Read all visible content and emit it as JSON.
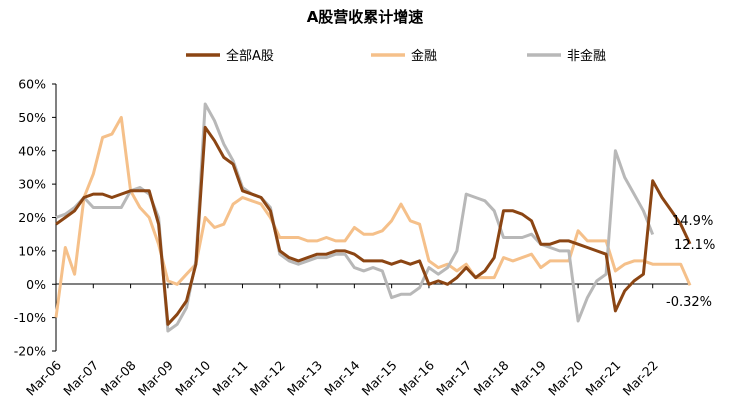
{
  "chart_data": {
    "type": "line",
    "title": "A股营收累计增速",
    "xlabel": "",
    "ylabel": "",
    "ylim": [
      -0.2,
      0.6
    ],
    "y_ticks": [
      0.6,
      0.5,
      0.4,
      0.3,
      0.2,
      0.1,
      0.0,
      -0.1,
      -0.2
    ],
    "y_tick_labels": [
      "60%",
      "50%",
      "40%",
      "30%",
      "20%",
      "10%",
      "0%",
      "-10%",
      "-20%"
    ],
    "x_tick_labels": [
      "Mar-06",
      "Mar-07",
      "Mar-08",
      "Mar-09",
      "Mar-10",
      "Mar-11",
      "Mar-12",
      "Mar-13",
      "Mar-14",
      "Mar-15",
      "Mar-16",
      "Mar-17",
      "Mar-18",
      "Mar-19",
      "Mar-20",
      "Mar-21",
      "Mar-22"
    ],
    "x_start": "2006-03",
    "x_end": "2022-03",
    "grid": false,
    "legend_position": "top",
    "series": [
      {
        "name": "全部A股",
        "color": "#8B4513",
        "values": [
          0.18,
          0.2,
          0.22,
          0.26,
          0.27,
          0.27,
          0.26,
          0.27,
          0.28,
          0.28,
          0.28,
          0.18,
          -0.12,
          -0.09,
          -0.05,
          0.06,
          0.47,
          0.43,
          0.38,
          0.36,
          0.28,
          0.27,
          0.26,
          0.22,
          0.1,
          0.08,
          0.07,
          0.08,
          0.09,
          0.09,
          0.1,
          0.1,
          0.09,
          0.07,
          0.07,
          0.07,
          0.06,
          0.07,
          0.06,
          0.07,
          0.0,
          0.01,
          0.0,
          0.02,
          0.05,
          0.02,
          0.04,
          0.08,
          0.22,
          0.22,
          0.21,
          0.19,
          0.12,
          0.12,
          0.13,
          0.13,
          0.12,
          0.11,
          0.1,
          0.09,
          -0.08,
          -0.02,
          0.01,
          0.03,
          0.31,
          0.26,
          0.22,
          0.18,
          0.121
        ]
      },
      {
        "name": "金融",
        "color": "#F5C08A",
        "values": [
          -0.1,
          0.11,
          0.03,
          0.26,
          0.33,
          0.44,
          0.45,
          0.5,
          0.28,
          0.23,
          0.2,
          0.12,
          0.01,
          0.0,
          0.03,
          0.06,
          0.2,
          0.17,
          0.18,
          0.24,
          0.26,
          0.25,
          0.24,
          0.2,
          0.14,
          0.14,
          0.14,
          0.13,
          0.13,
          0.14,
          0.13,
          0.13,
          0.17,
          0.15,
          0.15,
          0.16,
          0.19,
          0.24,
          0.19,
          0.18,
          0.07,
          0.05,
          0.06,
          0.04,
          0.06,
          0.02,
          0.02,
          0.02,
          0.08,
          0.07,
          0.08,
          0.09,
          0.05,
          0.07,
          0.07,
          0.07,
          0.16,
          0.13,
          0.13,
          0.13,
          0.04,
          0.06,
          0.07,
          0.07,
          0.06,
          0.06,
          0.06,
          0.06,
          -0.0032
        ]
      },
      {
        "name": "非金融",
        "color": "#B8B8B8",
        "values": [
          0.2,
          0.21,
          0.23,
          0.26,
          0.23,
          0.23,
          0.23,
          0.23,
          0.28,
          0.29,
          0.27,
          0.2,
          -0.14,
          -0.12,
          -0.07,
          0.07,
          0.54,
          0.49,
          0.42,
          0.37,
          0.29,
          0.27,
          0.26,
          0.23,
          0.09,
          0.07,
          0.06,
          0.07,
          0.08,
          0.08,
          0.09,
          0.09,
          0.05,
          0.04,
          0.05,
          0.04,
          -0.04,
          -0.03,
          -0.03,
          -0.01,
          0.05,
          0.03,
          0.05,
          0.1,
          0.27,
          0.26,
          0.25,
          0.22,
          0.14,
          0.14,
          0.14,
          0.15,
          0.12,
          0.11,
          0.1,
          0.1,
          -0.11,
          -0.04,
          0.01,
          0.03,
          0.4,
          0.32,
          0.27,
          0.22,
          0.149
        ]
      }
    ],
    "annotations": [
      {
        "text": "14.9%",
        "series": "非金融"
      },
      {
        "text": "12.1%",
        "series": "全部A股"
      },
      {
        "text": "-0.32%",
        "series": "金融"
      }
    ]
  }
}
